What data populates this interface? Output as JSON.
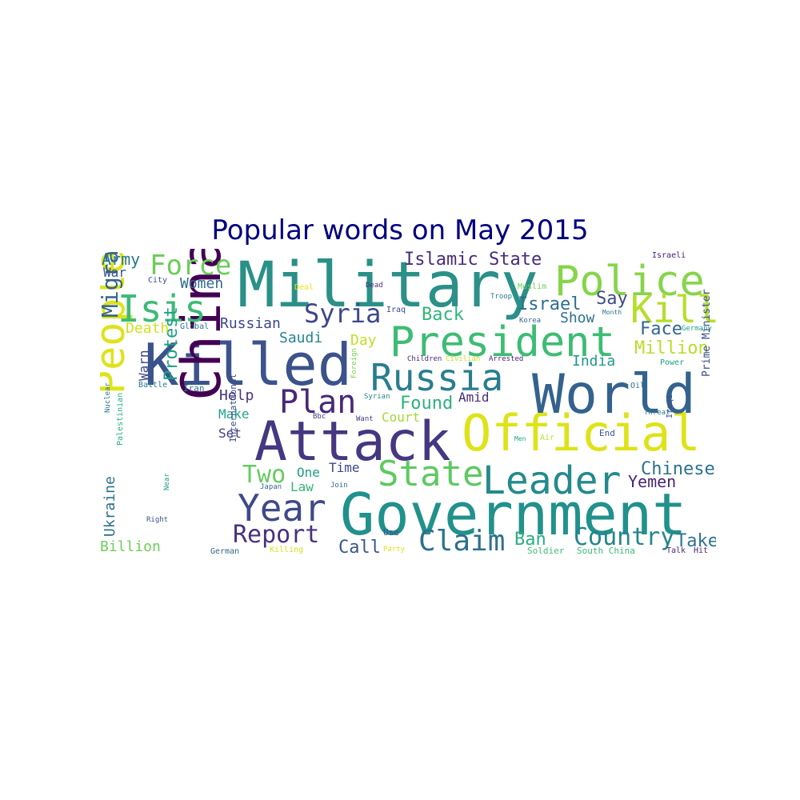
{
  "chart_data": {
    "type": "wordcloud",
    "title": "Popular words on May 2015",
    "colormap": "viridis",
    "background": "#ffffff",
    "title_color": "#00007f",
    "words": [
      {
        "text": "Military",
        "color": "#2a9088"
      },
      {
        "text": "Killed",
        "color": "#3b528b"
      },
      {
        "text": "Government",
        "color": "#21918c"
      },
      {
        "text": "Attack",
        "color": "#453781"
      },
      {
        "text": "Official",
        "color": "#dde318"
      },
      {
        "text": "World",
        "color": "#33638d"
      },
      {
        "text": "China",
        "color": "#440154"
      },
      {
        "text": "President",
        "color": "#3dbc74"
      },
      {
        "text": "Police",
        "color": "#86d549"
      },
      {
        "text": "Leader",
        "color": "#238a8d"
      },
      {
        "text": "Russia",
        "color": "#287d8e"
      },
      {
        "text": "People",
        "color": "#dde318"
      },
      {
        "text": "Year",
        "color": "#3e4a89"
      },
      {
        "text": "State",
        "color": "#5ec962"
      },
      {
        "text": "Isis",
        "color": "#3bbb75"
      },
      {
        "text": "Kill",
        "color": "#b5de2b"
      },
      {
        "text": "Plan",
        "color": "#482878"
      },
      {
        "text": "Claim",
        "color": "#2c718e"
      },
      {
        "text": "Force",
        "color": "#6ccd5a"
      },
      {
        "text": "Report",
        "color": "#46327e"
      },
      {
        "text": "Syria",
        "color": "#3f4788"
      },
      {
        "text": "Country",
        "color": "#25858e"
      },
      {
        "text": "Two",
        "color": "#65cb5e"
      },
      {
        "text": "Migrant",
        "color": "#33638d"
      },
      {
        "text": "Islamic State",
        "color": "#472c7a"
      },
      {
        "text": "Chinese",
        "color": "#2c728e"
      },
      {
        "text": "Protest",
        "color": "#1fa187"
      },
      {
        "text": "Back",
        "color": "#31b57b"
      },
      {
        "text": "Israel",
        "color": "#2e6e8e"
      },
      {
        "text": "Call",
        "color": "#38588c"
      },
      {
        "text": "Say",
        "color": "#3e4989"
      },
      {
        "text": "Face",
        "color": "#31668e"
      },
      {
        "text": "Million",
        "color": "#b8de29"
      },
      {
        "text": "Found",
        "color": "#2db27d"
      },
      {
        "text": "Ban",
        "color": "#29af7f"
      },
      {
        "text": "Take",
        "color": "#2c738e"
      },
      {
        "text": "Yemen",
        "color": "#482576"
      },
      {
        "text": "Army",
        "color": "#2a778e"
      },
      {
        "text": "Women",
        "color": "#2f6b8e"
      },
      {
        "text": "Death",
        "color": "#d0e11c"
      },
      {
        "text": "Russian",
        "color": "#3f4889"
      },
      {
        "text": "Saudi",
        "color": "#24868e"
      },
      {
        "text": "Day",
        "color": "#c2df23"
      },
      {
        "text": "India",
        "color": "#1f988b"
      },
      {
        "text": "Show",
        "color": "#2d708e"
      },
      {
        "text": "Help",
        "color": "#46337e"
      },
      {
        "text": "Make",
        "color": "#20a386"
      },
      {
        "text": "Set",
        "color": "#453882"
      },
      {
        "text": "One",
        "color": "#1e9c89"
      },
      {
        "text": "Time",
        "color": "#3f4788"
      },
      {
        "text": "Law",
        "color": "#35b779"
      },
      {
        "text": "Court",
        "color": "#a2da37"
      },
      {
        "text": "Amid",
        "color": "#472d7b"
      },
      {
        "text": "Ukraine",
        "color": "#2d708e"
      },
      {
        "text": "Billion",
        "color": "#6ece58"
      },
      {
        "text": "War",
        "color": "#39568c"
      },
      {
        "text": "Warn",
        "color": "#414487"
      },
      {
        "text": "Israeli",
        "color": "#482173"
      },
      {
        "text": "City",
        "color": "#3a538b"
      },
      {
        "text": "Deal",
        "color": "#e5e419"
      },
      {
        "text": "Dead",
        "color": "#46307e"
      },
      {
        "text": "Muslim",
        "color": "#6ccd5a"
      },
      {
        "text": "Troop",
        "color": "#277f8e"
      },
      {
        "text": "Month",
        "color": "#2a768e"
      },
      {
        "text": "Korea",
        "color": "#31688e"
      },
      {
        "text": "Germany",
        "color": "#20a486"
      },
      {
        "text": "Global",
        "color": "#2c738e"
      },
      {
        "text": "Iraq",
        "color": "#3f4889"
      },
      {
        "text": "Foreign",
        "color": "#7ad151"
      },
      {
        "text": "Children",
        "color": "#482878"
      },
      {
        "text": "Civilian",
        "color": "#c8e020"
      },
      {
        "text": "Arrested",
        "color": "#482475"
      },
      {
        "text": "Power",
        "color": "#1fa088"
      },
      {
        "text": "Battle",
        "color": "#287c8e"
      },
      {
        "text": "Iran",
        "color": "#297b8e"
      },
      {
        "text": "Syrian",
        "color": "#25848e"
      },
      {
        "text": "Oil",
        "color": "#2e6f8e"
      },
      {
        "text": "Prime Minister",
        "color": "#3d4e8a"
      },
      {
        "text": "Bbc",
        "color": "#424086"
      },
      {
        "text": "Want",
        "color": "#443a83"
      },
      {
        "text": "Threat",
        "color": "#2a788e"
      },
      {
        "text": "Nuclear",
        "color": "#2d718e"
      },
      {
        "text": "End",
        "color": "#3a548c"
      },
      {
        "text": "Iraqi",
        "color": "#3b528b"
      },
      {
        "text": "Palestinian",
        "color": "#2ab07f"
      },
      {
        "text": "International",
        "color": "#3d4d8a"
      },
      {
        "text": "Near",
        "color": "#1f9a8a"
      },
      {
        "text": "Join",
        "color": "#2c728e"
      },
      {
        "text": "Japan",
        "color": "#31688e"
      },
      {
        "text": "Air",
        "color": "#bade28"
      },
      {
        "text": "Men",
        "color": "#21a685"
      },
      {
        "text": "Right",
        "color": "#3b518b"
      },
      {
        "text": "Use",
        "color": "#3b528b"
      },
      {
        "text": "German",
        "color": "#31678e"
      },
      {
        "text": "Killing",
        "color": "#d2e21b"
      },
      {
        "text": "Party",
        "color": "#e1e418"
      },
      {
        "text": "Soldier",
        "color": "#3fbc73"
      },
      {
        "text": "South China",
        "color": "#3aba76"
      },
      {
        "text": "Talk",
        "color": "#482677"
      },
      {
        "text": "Hit",
        "color": "#482677"
      }
    ]
  }
}
